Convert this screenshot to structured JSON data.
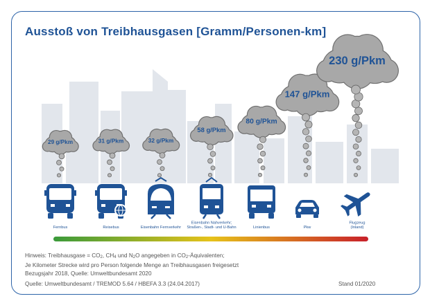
{
  "title": "Ausstoß von Treibhausgasen [Gramm/Personen-km]",
  "notes": {
    "line1_a": "Hinweis: Treibhausgase = CO",
    "line1_b": ", CH",
    "line1_c": " und N",
    "line1_d": "O angegeben in CO",
    "line1_e": "-Äquivalenten;",
    "line1_sub": "2",
    "line1_sub2": "4",
    "line2": "Je Kilometer Strecke wird pro Person folgende Menge an Treibhausgasen freigesetzt",
    "line3": "Bezugsjahr 2018, Quelle: Umweltbundesamt 2020"
  },
  "source": "Quelle: Umweltbundesamt / TREMOD 5.64 / HBEFA 3.3 (24.04.2017)",
  "stand": "Stand 01/2020",
  "colors": {
    "accent": "#1f5396",
    "cloud": "#a8a8a8",
    "skyline": "#e2e6ec",
    "gradient_start": "#3a9a3a",
    "gradient_mid": "#e6c21a",
    "gradient_end": "#c8202a"
  },
  "chart_data": {
    "type": "bar",
    "unit": "g/Pkm",
    "categories": [
      "Fernbus",
      "Reisebus",
      "Eisenbahn Fernverkehr",
      "Eisenbahn Nahverkehr; Straßen-, Stadt- und U-Bahn",
      "Linienbus",
      "Pkw",
      "Flugzeug (Inland)"
    ],
    "category_lines": [
      [
        "Fernbus"
      ],
      [
        "Reisebus"
      ],
      [
        "Eisenbahn Fernverkehr"
      ],
      [
        "Eisenbahn Nahverkehr;",
        "Straßen-, Stadt- und U-Bahn"
      ],
      [
        "Linienbus"
      ],
      [
        "Pkw"
      ],
      [
        "Flugzeug",
        "(Inland)"
      ]
    ],
    "values": [
      29,
      31,
      32,
      58,
      80,
      147,
      230
    ],
    "value_labels": [
      "29 g/Pkm",
      "31 g/Pkm",
      "32 g/Pkm",
      "58 g/Pkm",
      "80 g/Pkm",
      "147 g/Pkm",
      "230 g/Pkm"
    ],
    "icons": [
      "coach-bus-icon",
      "travel-bus-icon",
      "intercity-train-icon",
      "tram-icon",
      "city-bus-icon",
      "car-icon",
      "airplane-icon"
    ]
  }
}
